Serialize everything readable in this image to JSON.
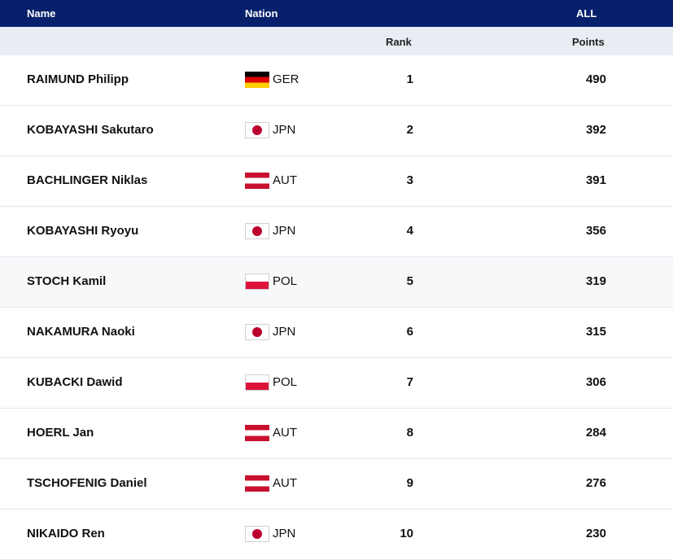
{
  "header": {
    "name_label": "Name",
    "nation_label": "Nation",
    "all_label": "ALL",
    "rank_label": "Rank",
    "points_label": "Points"
  },
  "rows": [
    {
      "name": "RAIMUND Philipp",
      "flag": "flag-ger",
      "code": "GER",
      "rank": "1",
      "points": "490"
    },
    {
      "name": "KOBAYASHI Sakutaro",
      "flag": "flag-jpn",
      "code": "JPN",
      "rank": "2",
      "points": "392"
    },
    {
      "name": "BACHLINGER Niklas",
      "flag": "flag-aut",
      "code": "AUT",
      "rank": "3",
      "points": "391"
    },
    {
      "name": "KOBAYASHI Ryoyu",
      "flag": "flag-jpn",
      "code": "JPN",
      "rank": "4",
      "points": "356"
    },
    {
      "name": "STOCH Kamil",
      "flag": "flag-pol",
      "code": "POL",
      "rank": "5",
      "points": "319"
    },
    {
      "name": "NAKAMURA Naoki",
      "flag": "flag-jpn",
      "code": "JPN",
      "rank": "6",
      "points": "315"
    },
    {
      "name": "KUBACKI Dawid",
      "flag": "flag-pol",
      "code": "POL",
      "rank": "7",
      "points": "306"
    },
    {
      "name": "HOERL Jan",
      "flag": "flag-aut",
      "code": "AUT",
      "rank": "8",
      "points": "284"
    },
    {
      "name": "TSCHOFENIG Daniel",
      "flag": "flag-aut",
      "code": "AUT",
      "rank": "9",
      "points": "276"
    },
    {
      "name": "NIKAIDO Ren",
      "flag": "flag-jpn",
      "code": "JPN",
      "rank": "10",
      "points": "230"
    }
  ],
  "colors": {
    "header_bg": "#06206b",
    "subheader_bg": "#e8ecf3"
  }
}
